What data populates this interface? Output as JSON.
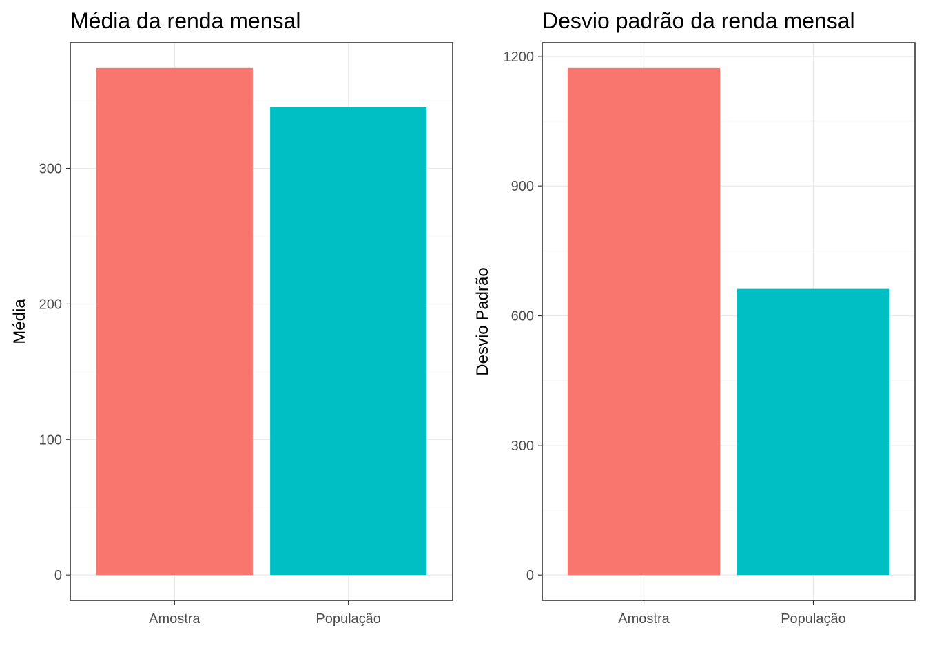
{
  "chart_data": [
    {
      "type": "bar",
      "title": "Média da renda mensal",
      "xlabel": "",
      "ylabel": "Média",
      "categories": [
        "Amostra",
        "População"
      ],
      "values": [
        374,
        345
      ],
      "colors": [
        "#F8766D",
        "#00BFC4"
      ],
      "ylim": [
        -18.7,
        392.7
      ],
      "yticks": [
        0,
        100,
        200,
        300
      ],
      "ytick_labels": [
        "0",
        "100",
        "200",
        "300"
      ],
      "grid": true,
      "legend": "none"
    },
    {
      "type": "bar",
      "title": "Desvio padrão da renda mensal",
      "xlabel": "",
      "ylabel": "Desvio Padrão",
      "categories": [
        "Amostra",
        "População"
      ],
      "values": [
        1173,
        662
      ],
      "colors": [
        "#F8766D",
        "#00BFC4"
      ],
      "ylim": [
        -58.65,
        1231.65
      ],
      "yticks": [
        0,
        300,
        600,
        900,
        1200
      ],
      "ytick_labels": [
        "0",
        "300",
        "600",
        "900",
        "1200"
      ],
      "grid": true,
      "legend": "none"
    }
  ]
}
